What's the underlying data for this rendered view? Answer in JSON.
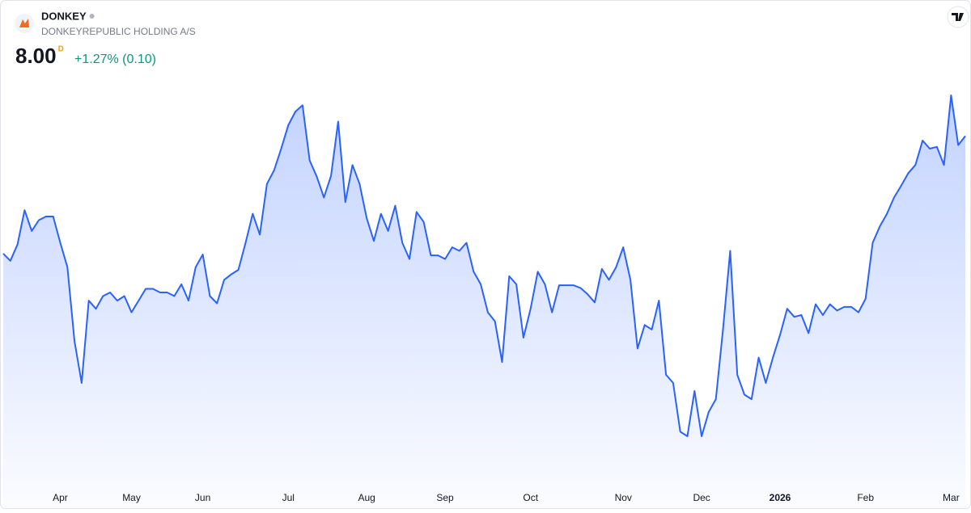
{
  "header": {
    "ticker": "DONKEY",
    "company": "DONKEYREPUBLIC HOLDING A/S",
    "last_price": "8.00",
    "currency_mark": "D",
    "change": "+1.27% (0.10)"
  },
  "chart_data": {
    "type": "area",
    "color": "#2962ff",
    "categories": [
      null,
      null,
      null,
      null,
      null,
      null,
      null,
      null,
      "Apr",
      null,
      null,
      null,
      null,
      null,
      null,
      null,
      null,
      null,
      "May",
      null,
      null,
      null,
      null,
      null,
      null,
      null,
      null,
      null,
      "Jun",
      null,
      null,
      null,
      null,
      null,
      null,
      null,
      null,
      null,
      null,
      null,
      "Jul",
      null,
      null,
      null,
      null,
      null,
      null,
      null,
      null,
      null,
      null,
      "Aug",
      null,
      null,
      null,
      null,
      null,
      null,
      null,
      null,
      null,
      null,
      "Sep",
      null,
      null,
      null,
      null,
      null,
      null,
      null,
      null,
      null,
      null,
      null,
      "Oct",
      null,
      null,
      null,
      null,
      null,
      null,
      null,
      null,
      null,
      null,
      null,
      null,
      "Nov",
      null,
      null,
      null,
      null,
      null,
      null,
      null,
      null,
      null,
      null,
      "Dec",
      null,
      null,
      null,
      null,
      null,
      null,
      null,
      null,
      null,
      null,
      "2026",
      null,
      null,
      null,
      null,
      null,
      null,
      null,
      null,
      null,
      null,
      null,
      "Feb",
      null,
      null,
      null,
      null,
      null,
      null,
      null,
      null,
      null,
      null,
      null,
      "Mar",
      null,
      null
    ],
    "values": [
      6.7,
      6.62,
      6.8,
      7.18,
      6.95,
      7.07,
      7.11,
      7.11,
      6.82,
      6.55,
      5.73,
      5.27,
      6.18,
      6.09,
      6.23,
      6.27,
      6.18,
      6.23,
      6.05,
      6.18,
      6.31,
      6.31,
      6.27,
      6.27,
      6.23,
      6.36,
      6.18,
      6.55,
      6.69,
      6.23,
      6.15,
      6.41,
      6.47,
      6.52,
      6.82,
      7.14,
      6.91,
      7.47,
      7.62,
      7.86,
      8.12,
      8.27,
      8.34,
      7.73,
      7.55,
      7.32,
      7.56,
      8.16,
      7.27,
      7.68,
      7.47,
      7.09,
      6.84,
      7.14,
      6.95,
      7.23,
      6.82,
      6.64,
      7.16,
      7.05,
      6.68,
      6.68,
      6.64,
      6.77,
      6.73,
      6.82,
      6.5,
      6.36,
      6.05,
      5.95,
      5.5,
      6.45,
      6.36,
      5.77,
      6.09,
      6.5,
      6.36,
      6.05,
      6.35,
      6.35,
      6.35,
      6.32,
      6.25,
      6.16,
      6.53,
      6.41,
      6.55,
      6.77,
      6.41,
      5.65,
      5.91,
      5.86,
      6.18,
      5.36,
      5.27,
      4.73,
      4.68,
      5.18,
      4.68,
      4.95,
      5.09,
      5.86,
      6.73,
      5.36,
      5.14,
      5.09,
      5.55,
      5.27,
      5.55,
      5.8,
      6.09,
      6.0,
      6.02,
      5.82,
      6.14,
      6.02,
      6.14,
      6.07,
      6.11,
      6.11,
      6.05,
      6.2,
      6.82,
      7.0,
      7.14,
      7.32,
      7.45,
      7.59,
      7.68,
      7.95,
      7.86,
      7.88,
      7.68,
      8.45,
      7.9,
      8.0
    ]
  }
}
